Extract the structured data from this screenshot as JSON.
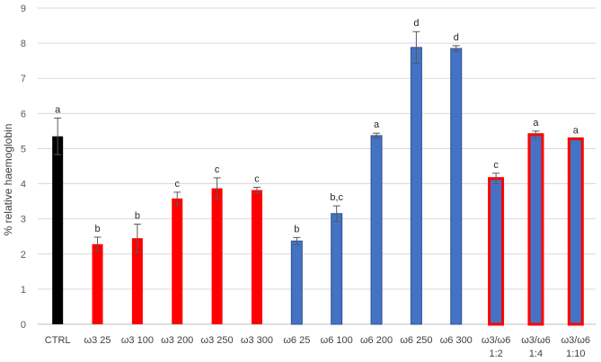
{
  "chart_data": {
    "type": "bar",
    "title": "",
    "xlabel": "",
    "ylabel": "% relative haemoglobin",
    "ylim": [
      0,
      9
    ],
    "yticks": [
      0,
      1,
      2,
      3,
      4,
      5,
      6,
      7,
      8,
      9
    ],
    "grid": true,
    "legend": "none",
    "categories": [
      [
        "CTRL"
      ],
      [
        "ω3 25"
      ],
      [
        "ω3 100"
      ],
      [
        "ω3 200"
      ],
      [
        "ω3 250"
      ],
      [
        "ω3 300"
      ],
      [
        "ω6 25"
      ],
      [
        "ω6 100"
      ],
      [
        "ω6 200"
      ],
      [
        "ω6 250"
      ],
      [
        "ω6 300"
      ],
      [
        "ω3/ω6",
        "1:2"
      ],
      [
        "ω3/ω6",
        "1:4"
      ],
      [
        "ω3/ω6",
        "1:10"
      ]
    ],
    "values": [
      5.35,
      2.28,
      2.45,
      3.58,
      3.87,
      3.82,
      2.37,
      3.15,
      5.37,
      7.88,
      7.85,
      4.15,
      5.4,
      5.28
    ],
    "errors": [
      0.52,
      0.2,
      0.4,
      0.18,
      0.3,
      0.08,
      0.1,
      0.22,
      0.07,
      0.45,
      0.08,
      0.15,
      0.1,
      0.0
    ],
    "significance": [
      "a",
      "b",
      "b",
      "c",
      "c",
      "c",
      "b",
      "b,c",
      "a",
      "d",
      "d",
      "c",
      "a",
      "a"
    ],
    "colors": {
      "ctrl": "#000000",
      "omega3": "#ff0000",
      "omega6": "#4472c4",
      "mix_fill": "#4472c4",
      "mix_border": "#ff0000"
    },
    "groups": [
      "ctrl",
      "omega3",
      "omega3",
      "omega3",
      "omega3",
      "omega3",
      "omega6",
      "omega6",
      "omega6",
      "omega6",
      "omega6",
      "mix",
      "mix",
      "mix"
    ]
  }
}
